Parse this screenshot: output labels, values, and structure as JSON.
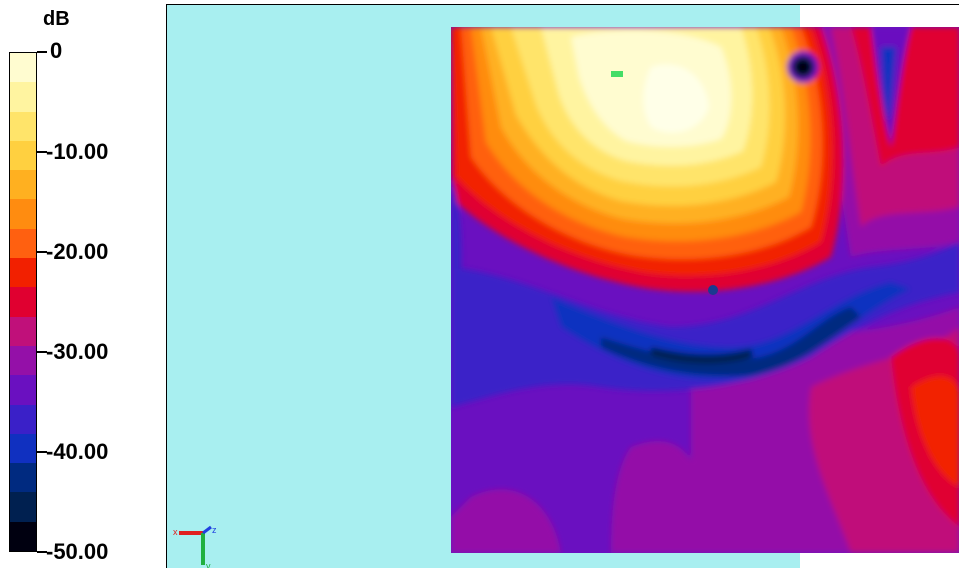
{
  "legend": {
    "unit": "dB",
    "ticks": [
      "0",
      "-10.00",
      "-20.00",
      "-30.00",
      "-40.00",
      "-50.00"
    ],
    "bands": [
      "#fffcd0",
      "#fff4a0",
      "#ffe46a",
      "#ffd040",
      "#ffb020",
      "#ff8c10",
      "#ff6010",
      "#f22000",
      "#e00030",
      "#c0107a",
      "#9410a8",
      "#6a10c0",
      "#3a20c8",
      "#1030c0",
      "#002a80",
      "#002050",
      "#000010"
    ]
  },
  "chart_data": {
    "type": "heatmap",
    "title": "",
    "colorbar_label": "dB",
    "value_range": [
      -50,
      0
    ],
    "tick_values": [
      0,
      -10,
      -20,
      -30,
      -40,
      -50
    ],
    "tick_labels": [
      "0",
      "-10.00",
      "-20.00",
      "-30.00",
      "-40.00",
      "-50.00"
    ],
    "level_step": 3.125,
    "description_free": true,
    "features": [
      {
        "type": "peak",
        "level": 0
      },
      {
        "type": "trough",
        "level": -50
      },
      {
        "type": "trough",
        "level": -40
      }
    ]
  },
  "axes": {
    "x_label": "x",
    "y_label": "y",
    "z_label": "z"
  }
}
